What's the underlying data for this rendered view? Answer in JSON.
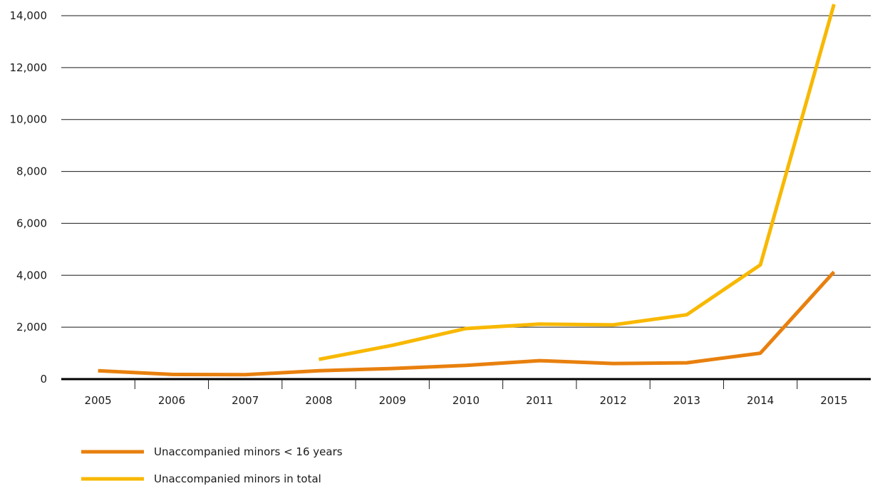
{
  "chart_data": {
    "type": "line",
    "title": "",
    "xlabel": "",
    "ylabel": "",
    "x": [
      "2005",
      "2006",
      "2007",
      "2008",
      "2009",
      "2010",
      "2011",
      "2012",
      "2013",
      "2014",
      "2015"
    ],
    "ylim": [
      0,
      14000
    ],
    "yticks": [
      0,
      2000,
      4000,
      6000,
      8000,
      10000,
      12000,
      14000
    ],
    "ytick_labels": [
      "0",
      "2,000",
      "4,000",
      "6,000",
      "8,000",
      "10,000",
      "12,000",
      "14,000"
    ],
    "grid": true,
    "legend_position": "bottom-left",
    "series": [
      {
        "name": "Unaccompanied minors < 16 years",
        "color": "#e8800e",
        "values": [
          320,
          180,
          170,
          320,
          410,
          530,
          710,
          600,
          630,
          1000,
          4130
        ]
      },
      {
        "name": "Unaccompanied minors in total",
        "color": "#f8b800",
        "values": [
          null,
          null,
          null,
          760,
          1300,
          1950,
          2120,
          2090,
          2480,
          4400,
          14440
        ]
      }
    ]
  }
}
